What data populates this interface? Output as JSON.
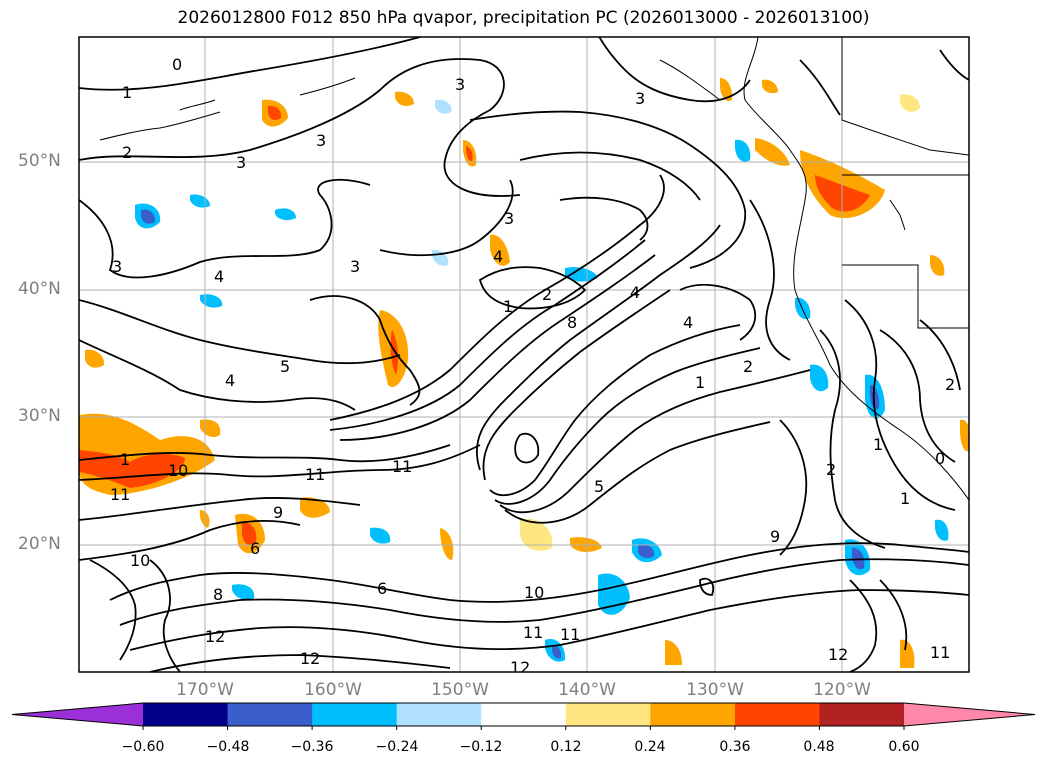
{
  "title": "2026012800 F012 850 hPa qvapor, precipitation PC (2026013000 - 2026013100)",
  "map": {
    "lat_labels": [
      "50°N",
      "40°N",
      "30°N",
      "20°N"
    ],
    "lon_labels": [
      "170°W",
      "160°W",
      "150°W",
      "140°W",
      "130°W",
      "120°W"
    ],
    "gridlines": true
  },
  "colorbar": {
    "extend": "both",
    "tick_labels": [
      "−0.60",
      "−0.48",
      "−0.36",
      "−0.24",
      "−0.12",
      "0.12",
      "0.24",
      "0.36",
      "0.48",
      "0.60"
    ],
    "colors": [
      "#9b30d9",
      "#00008b",
      "#3a5fcd",
      "#00bfff",
      "#b0e2ff",
      "#ffffff",
      "#ffe680",
      "#ffa500",
      "#ff4500",
      "#b22222",
      "#ff88aa"
    ]
  },
  "contour_labels": [
    "0",
    "1",
    "2",
    "3",
    "3",
    "3",
    "3",
    "3",
    "3",
    "3",
    "4",
    "4",
    "4",
    "4",
    "4",
    "5",
    "5",
    "6",
    "6",
    "8",
    "8",
    "9",
    "9",
    "10",
    "10",
    "10",
    "11",
    "11",
    "11",
    "11",
    "11",
    "11",
    "12",
    "12",
    "12",
    "12",
    "1",
    "2",
    "1",
    "2",
    "1",
    "1",
    "2",
    "0",
    "1",
    "2"
  ]
}
